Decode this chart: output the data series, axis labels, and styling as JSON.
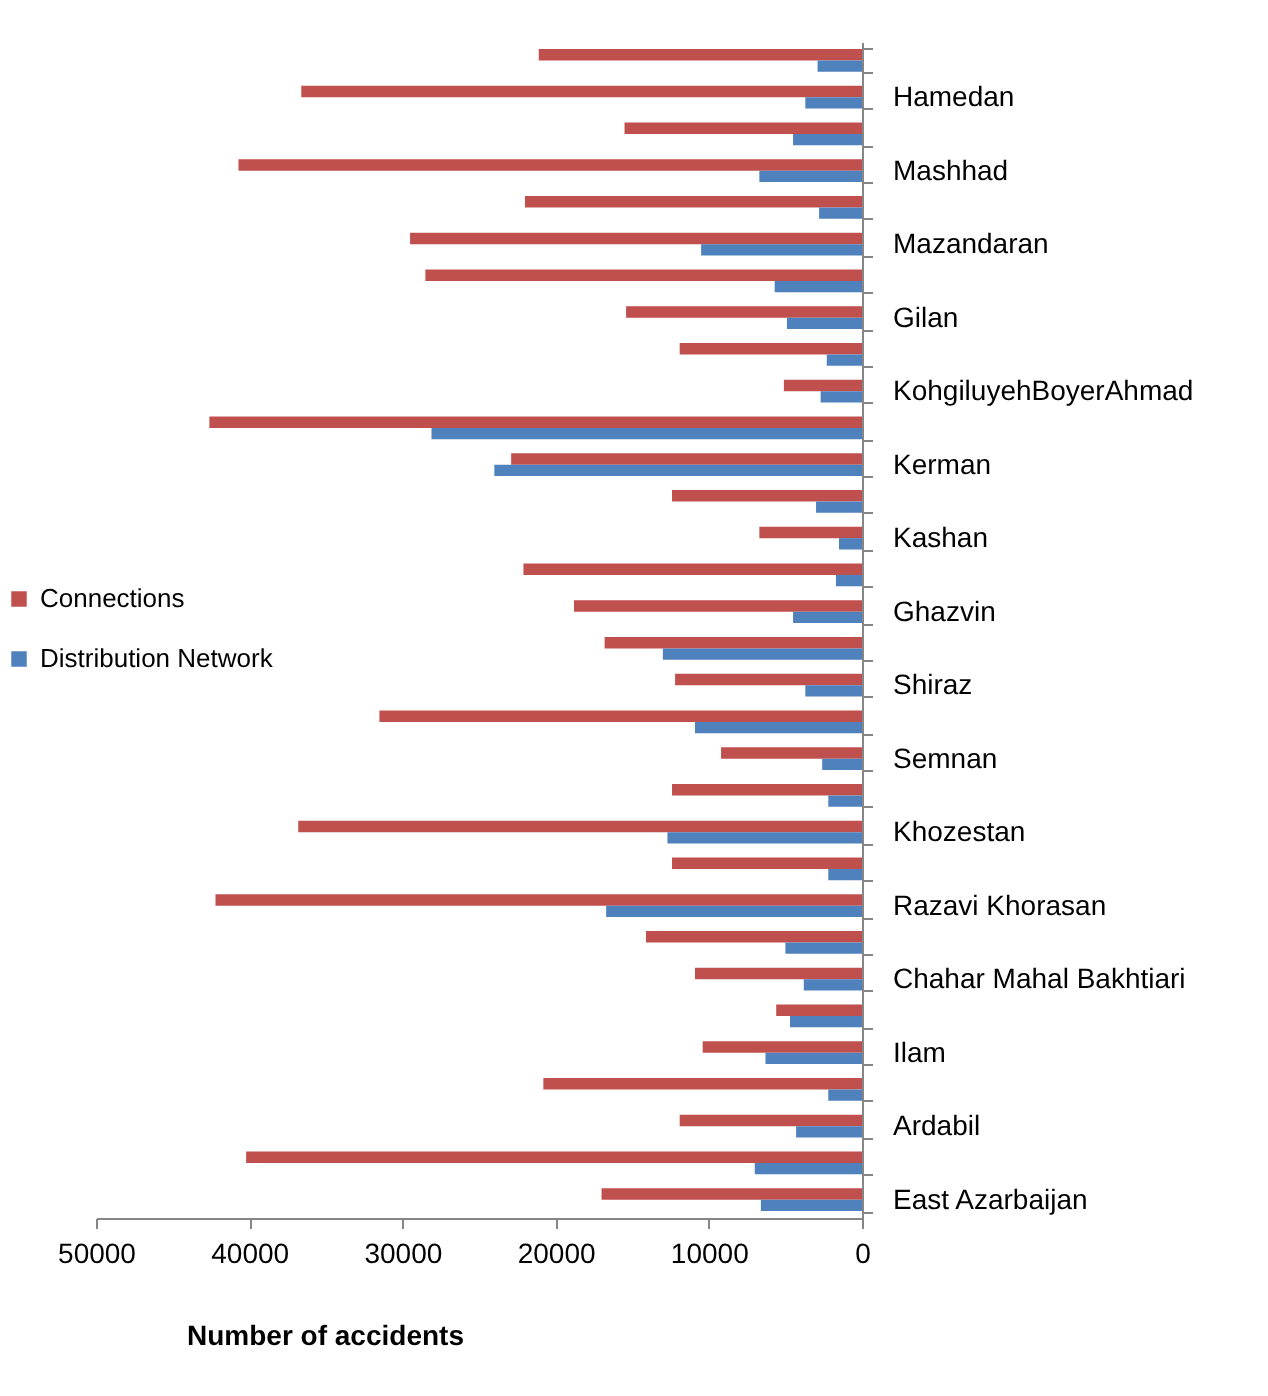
{
  "chart_data": {
    "type": "bar",
    "orientation": "horizontal",
    "categories": [
      null,
      "Hamedan",
      null,
      "Mashhad",
      null,
      "Mazandaran",
      null,
      "Gilan",
      null,
      "KohgiluyehBoyerAhmad",
      null,
      "Kerman",
      null,
      "Kashan",
      null,
      "Ghazvin",
      null,
      "Shiraz",
      null,
      "Semnan",
      null,
      "Khozestan",
      null,
      "Razavi Khorasan",
      null,
      "Chahar Mahal Bakhtiari",
      null,
      "Ilam",
      null,
      "Ardabil",
      null,
      "East Azarbaijan"
    ],
    "series": [
      {
        "name": "Connections",
        "color": "#c0504d",
        "values": [
          21100,
          36600,
          15500,
          40700,
          22000,
          29500,
          28500,
          15400,
          11900,
          5100,
          42600,
          22900,
          12400,
          6700,
          22100,
          18800,
          16800,
          12200,
          31500,
          9200,
          12400,
          36800,
          12400,
          42200,
          14100,
          10900,
          5600,
          10400,
          20800,
          11900,
          40200,
          17000
        ]
      },
      {
        "name": "Distribution Network",
        "color": "#4f81bd",
        "values": [
          2900,
          3700,
          4500,
          6700,
          2800,
          10500,
          5700,
          4900,
          2300,
          2700,
          28100,
          24000,
          3000,
          1500,
          1700,
          4500,
          13000,
          3700,
          10900,
          2600,
          2200,
          12700,
          2200,
          16700,
          5000,
          3800,
          4700,
          6300,
          2200,
          4300,
          7000,
          6600
        ]
      }
    ],
    "xlim": [
      50000,
      0
    ],
    "xticks": [
      50000,
      40000,
      30000,
      20000,
      10000,
      0
    ],
    "xlabel": "Number of accidents",
    "legend": "left",
    "grid": false
  }
}
